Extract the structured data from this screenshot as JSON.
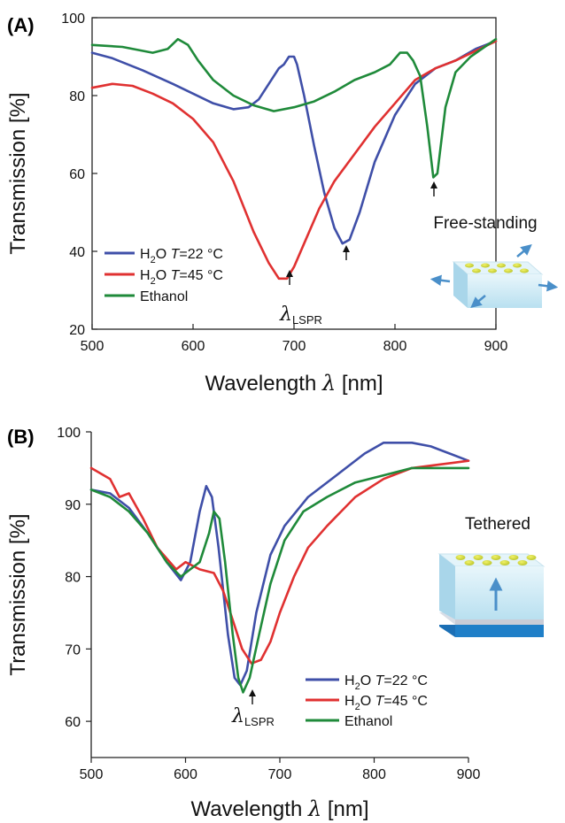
{
  "chart_data": [
    {
      "type": "line",
      "panel_label": "(A)",
      "xlabel": "Wavelength",
      "xlabel_symbol": "λ",
      "xlabel_unit": "[nm]",
      "ylabel": "Transmission [%]",
      "xlim": [
        500,
        900
      ],
      "ylim": [
        20,
        100
      ],
      "xticks": [
        "500",
        "600",
        "700",
        "800",
        "900"
      ],
      "yticks": [
        "20",
        "40",
        "60",
        "80",
        "100"
      ],
      "grid": false,
      "legend_position": "bottom-left",
      "annotation": {
        "symbol": "λ",
        "subscript": "LSPR"
      },
      "inset_label": "Free-standing",
      "series": [
        {
          "name_parts": [
            "H",
            "2",
            "O ",
            "T",
            "=22 °C"
          ],
          "color": "#3f4fa8",
          "points": [
            [
              500,
              91
            ],
            [
              520,
              89.6
            ],
            [
              550,
              86.5
            ],
            [
              580,
              83
            ],
            [
              600,
              80.5
            ],
            [
              620,
              78
            ],
            [
              640,
              76.5
            ],
            [
              655,
              77
            ],
            [
              665,
              79
            ],
            [
              675,
              83
            ],
            [
              685,
              87
            ],
            [
              690,
              88
            ],
            [
              695,
              90
            ],
            [
              700,
              90
            ],
            [
              703,
              88
            ],
            [
              710,
              80
            ],
            [
              720,
              67
            ],
            [
              730,
              55
            ],
            [
              740,
              46
            ],
            [
              748,
              42
            ],
            [
              755,
              43
            ],
            [
              765,
              50
            ],
            [
              780,
              63
            ],
            [
              800,
              75
            ],
            [
              820,
              83
            ],
            [
              840,
              87
            ],
            [
              860,
              89
            ],
            [
              880,
              92
            ],
            [
              900,
              94
            ]
          ]
        },
        {
          "name_parts": [
            "H",
            "2",
            "O ",
            "T",
            "=45 °C"
          ],
          "color": "#e03131",
          "points": [
            [
              500,
              82
            ],
            [
              520,
              83
            ],
            [
              540,
              82.5
            ],
            [
              560,
              80.5
            ],
            [
              580,
              78
            ],
            [
              600,
              74
            ],
            [
              620,
              68
            ],
            [
              640,
              58
            ],
            [
              660,
              45
            ],
            [
              675,
              37
            ],
            [
              685,
              33
            ],
            [
              693,
              33
            ],
            [
              700,
              36
            ],
            [
              710,
              42
            ],
            [
              725,
              51
            ],
            [
              740,
              58
            ],
            [
              760,
              65
            ],
            [
              780,
              72
            ],
            [
              800,
              78
            ],
            [
              820,
              84
            ],
            [
              840,
              87
            ],
            [
              860,
              89
            ],
            [
              880,
              91.5
            ],
            [
              900,
              94
            ]
          ]
        },
        {
          "name_parts": [
            "Ethanol"
          ],
          "color": "#1f8a3a",
          "points": [
            [
              500,
              93
            ],
            [
              530,
              92.5
            ],
            [
              560,
              91
            ],
            [
              575,
              92
            ],
            [
              585,
              94.5
            ],
            [
              595,
              93
            ],
            [
              605,
              89
            ],
            [
              620,
              84
            ],
            [
              640,
              80
            ],
            [
              660,
              77.5
            ],
            [
              680,
              76
            ],
            [
              700,
              77
            ],
            [
              720,
              78.5
            ],
            [
              740,
              81
            ],
            [
              760,
              84
            ],
            [
              780,
              86
            ],
            [
              795,
              88
            ],
            [
              805,
              91
            ],
            [
              812,
              91
            ],
            [
              818,
              89
            ],
            [
              825,
              85
            ],
            [
              832,
              72
            ],
            [
              838,
              59
            ],
            [
              842,
              60
            ],
            [
              850,
              77
            ],
            [
              860,
              86
            ],
            [
              875,
              90
            ],
            [
              900,
              94.5
            ]
          ]
        }
      ]
    },
    {
      "type": "line",
      "panel_label": "(B)",
      "xlabel": "Wavelength",
      "xlabel_symbol": "λ",
      "xlabel_unit": "[nm]",
      "ylabel": "Transmission [%]",
      "xlim": [
        500,
        900
      ],
      "ylim": [
        55,
        100
      ],
      "xticks": [
        "500",
        "600",
        "700",
        "800",
        "900"
      ],
      "yticks": [
        "60",
        "70",
        "80",
        "90",
        "100"
      ],
      "grid": false,
      "legend_position": "bottom-right",
      "annotation": {
        "symbol": "λ",
        "subscript": "LSPR"
      },
      "inset_label": "Tethered",
      "series": [
        {
          "name_parts": [
            "H",
            "2",
            "O ",
            "T",
            "=22 °C"
          ],
          "color": "#3f4fa8",
          "points": [
            [
              500,
              92
            ],
            [
              520,
              91.5
            ],
            [
              540,
              89.5
            ],
            [
              560,
              86
            ],
            [
              580,
              82
            ],
            [
              595,
              79.5
            ],
            [
              605,
              82
            ],
            [
              615,
              89
            ],
            [
              622,
              92.5
            ],
            [
              628,
              91
            ],
            [
              635,
              84
            ],
            [
              645,
              72
            ],
            [
              652,
              66
            ],
            [
              658,
              65
            ],
            [
              665,
              67
            ],
            [
              675,
              75
            ],
            [
              690,
              83
            ],
            [
              705,
              87
            ],
            [
              730,
              91
            ],
            [
              760,
              94
            ],
            [
              790,
              97
            ],
            [
              810,
              98.5
            ],
            [
              840,
              98.5
            ],
            [
              860,
              98
            ],
            [
              880,
              97
            ],
            [
              900,
              96
            ]
          ]
        },
        {
          "name_parts": [
            "H",
            "2",
            "O ",
            "T",
            "=45 °C"
          ],
          "color": "#e03131",
          "points": [
            [
              500,
              95
            ],
            [
              520,
              93.5
            ],
            [
              530,
              91
            ],
            [
              540,
              91.5
            ],
            [
              555,
              88
            ],
            [
              570,
              84
            ],
            [
              590,
              81
            ],
            [
              600,
              82
            ],
            [
              615,
              81
            ],
            [
              630,
              80.5
            ],
            [
              640,
              78
            ],
            [
              650,
              74
            ],
            [
              660,
              70
            ],
            [
              670,
              68
            ],
            [
              680,
              68.5
            ],
            [
              690,
              71
            ],
            [
              700,
              75
            ],
            [
              715,
              80
            ],
            [
              730,
              84
            ],
            [
              750,
              87
            ],
            [
              780,
              91
            ],
            [
              810,
              93.5
            ],
            [
              840,
              95
            ],
            [
              870,
              95.5
            ],
            [
              900,
              96
            ]
          ]
        },
        {
          "name_parts": [
            "Ethanol"
          ],
          "color": "#1f8a3a",
          "points": [
            [
              500,
              92
            ],
            [
              520,
              91
            ],
            [
              540,
              89
            ],
            [
              560,
              86
            ],
            [
              580,
              82
            ],
            [
              595,
              80
            ],
            [
              605,
              81
            ],
            [
              615,
              82
            ],
            [
              625,
              86
            ],
            [
              630,
              89
            ],
            [
              636,
              88
            ],
            [
              642,
              82
            ],
            [
              650,
              72
            ],
            [
              656,
              66
            ],
            [
              661,
              64
            ],
            [
              668,
              66
            ],
            [
              678,
              72
            ],
            [
              690,
              79
            ],
            [
              705,
              85
            ],
            [
              725,
              89
            ],
            [
              750,
              91
            ],
            [
              780,
              93
            ],
            [
              810,
              94
            ],
            [
              840,
              95
            ],
            [
              870,
              95
            ],
            [
              900,
              95
            ]
          ]
        }
      ]
    }
  ]
}
